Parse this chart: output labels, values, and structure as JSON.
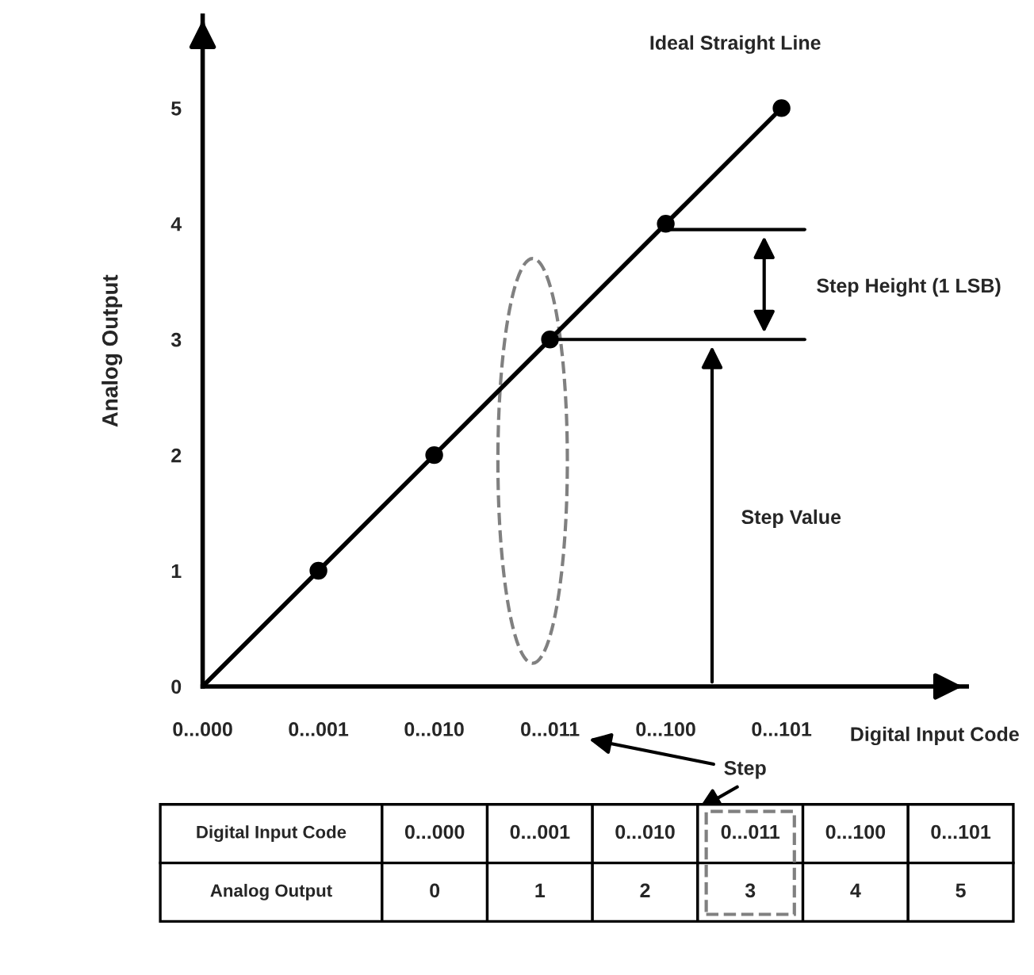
{
  "chart_data": [
    {
      "type": "line",
      "xlabel": "Digital Input Code",
      "ylabel": "Analog Output",
      "categories": [
        "0...000",
        "0...001",
        "0...010",
        "0...011",
        "0...100",
        "0...101"
      ],
      "series": [
        {
          "type": "line",
          "color": "#000000",
          "values": [
            0,
            1,
            2,
            3,
            4,
            5
          ],
          "marker": "none",
          "line_style": "solid"
        },
        {
          "type": "scatter",
          "color": "#000000",
          "values": [
            null,
            1,
            2,
            3,
            4,
            5
          ],
          "marker": "circle"
        }
      ],
      "ylim": [
        0,
        5.8
      ],
      "yticks": [
        0,
        1,
        2,
        3,
        4,
        5
      ],
      "grid": false,
      "legend": false,
      "annotations": [
        "Ideal Straight Line",
        "Step Height (1 LSB)",
        "Step Value",
        "Step"
      ]
    },
    {
      "type": "other",
      "xlabel": "Digital Input Code",
      "ylabel": "Analog Output",
      "categories": [
        "0...000",
        "0...001",
        "0...010",
        "0...011",
        "0...100",
        "0...101"
      ],
      "values": [
        0,
        1,
        2,
        3,
        4,
        5
      ],
      "data_labels": true
    }
  ]
}
